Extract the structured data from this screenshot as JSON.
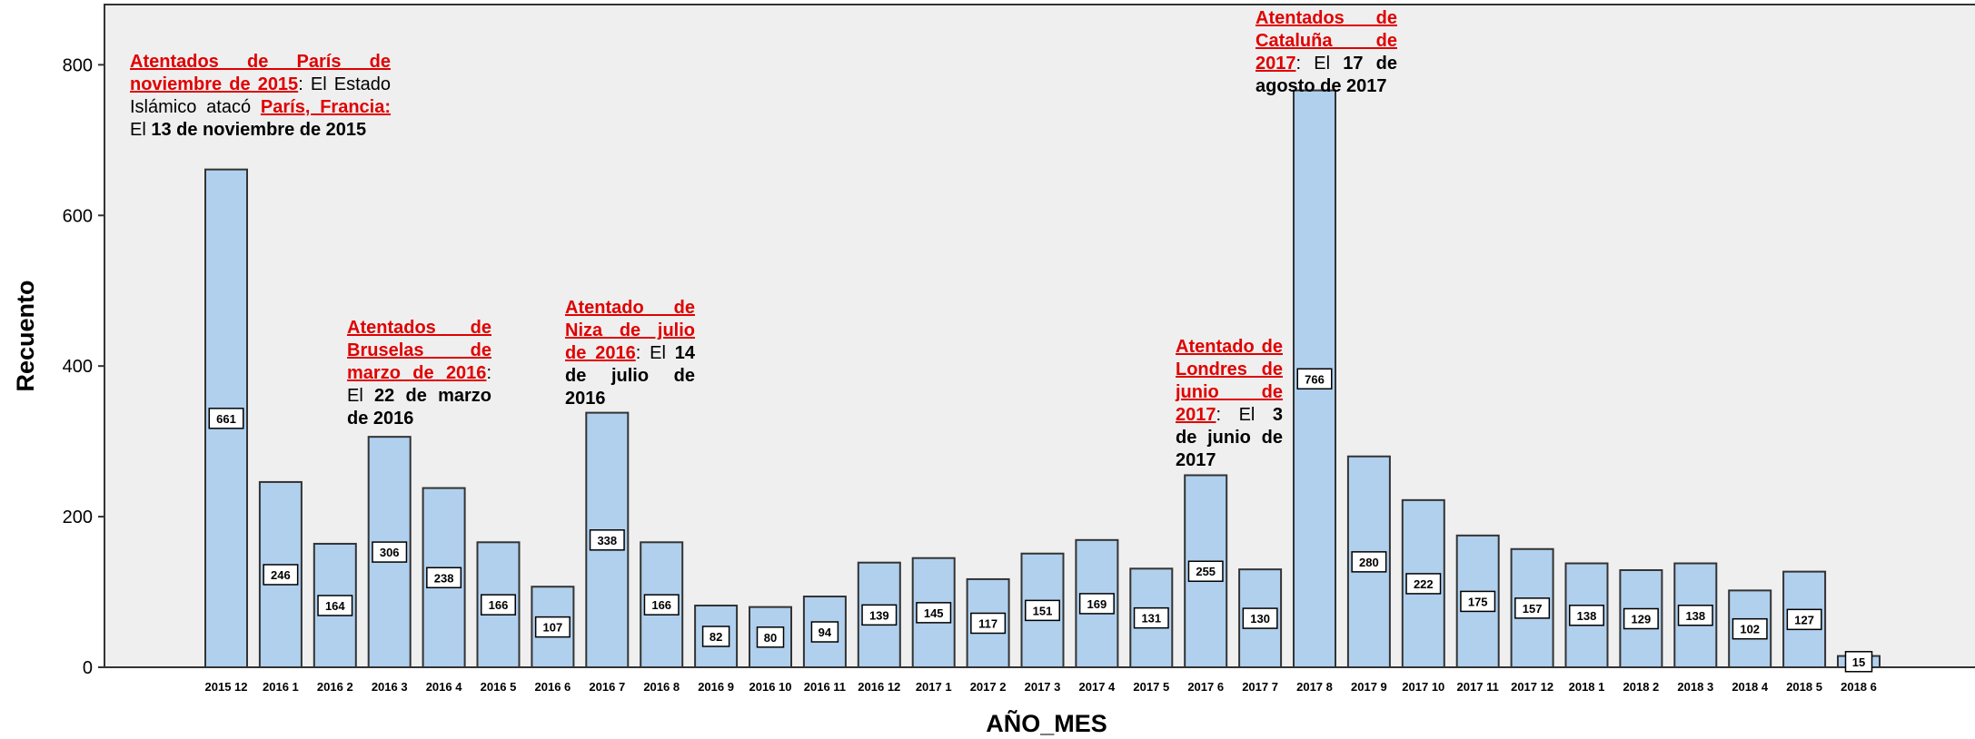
{
  "chart_data": {
    "type": "bar",
    "xlabel": "AÑO_MES",
    "ylabel": "Recuento",
    "ylim": [
      0,
      880
    ],
    "yticks": [
      0,
      200,
      400,
      600,
      800
    ],
    "categories": [
      "2015 12",
      "2016 1",
      "2016 2",
      "2016 3",
      "2016 4",
      "2016 5",
      "2016 6",
      "2016 7",
      "2016 8",
      "2016 9",
      "2016 10",
      "2016 11",
      "2016 12",
      "2017 1",
      "2017 2",
      "2017 3",
      "2017 4",
      "2017 5",
      "2017 6",
      "2017 7",
      "2017 8",
      "2017 9",
      "2017 10",
      "2017 11",
      "2017 12",
      "2018 1",
      "2018 2",
      "2018 3",
      "2018 4",
      "2018 5",
      "2018 6"
    ],
    "values": [
      661,
      246,
      164,
      306,
      238,
      166,
      107,
      338,
      166,
      82,
      80,
      94,
      139,
      145,
      117,
      151,
      169,
      131,
      255,
      130,
      766,
      280,
      222,
      175,
      157,
      138,
      129,
      138,
      102,
      127,
      15
    ],
    "colors": {
      "bar": "#b0d0ee",
      "plot_bg": "#efefef",
      "annotation_heading": "#e00000"
    },
    "annotations": [
      {
        "heading": "Atentados de París de noviembre de 2015",
        "p1": ": El Estado Islámico atacó ",
        "link": "París, Francia:",
        "p2": " El ",
        "bold": "13 de noviembre de 2015",
        "p3": ""
      },
      {
        "heading": "Atentados de Bruselas de marzo de 2016",
        "p1": ": El ",
        "bold": "22 de marzo de 2016",
        "p3": ""
      },
      {
        "heading": "Atentado de Niza de julio de 2016",
        "p1": ": El ",
        "bold": "14 de julio de 2016",
        "p3": ""
      },
      {
        "heading": "Atentado de Londres de junio de 2017",
        "p1": ": El ",
        "bold": "3 de junio de 2017",
        "p3": ""
      },
      {
        "heading": "Atentados de Cataluña de 2017",
        "p1": ": El ",
        "bold": "17 de agosto de 2017",
        "p3": ""
      }
    ]
  }
}
